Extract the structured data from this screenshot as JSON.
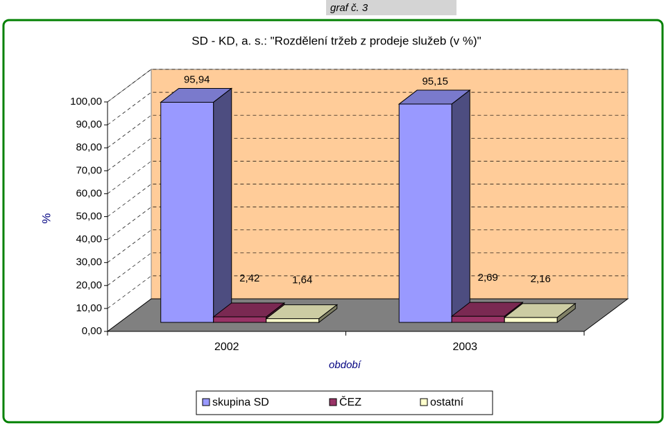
{
  "tag": "graf č. 3",
  "chart_data": {
    "type": "bar3d",
    "title": "SD - KD, a. s.: \"Rozdělení tržeb z prodeje služeb (v %)\"",
    "y_label": "%",
    "x_label": "období",
    "categories": [
      "2002",
      "2003"
    ],
    "series": [
      {
        "name": "skupina SD",
        "color": "#9999ff",
        "values": [
          95.94,
          95.15
        ],
        "value_labels": [
          "95,94",
          "95,15"
        ]
      },
      {
        "name": "ČEZ",
        "color": "#993366",
        "values": [
          2.42,
          2.69
        ],
        "value_labels": [
          "2,42",
          "2,69"
        ]
      },
      {
        "name": "ostatní",
        "color": "#ffffcc",
        "values": [
          1.64,
          2.16
        ],
        "value_labels": [
          "1,64",
          "2,16"
        ]
      }
    ],
    "ylim": [
      0,
      100
    ],
    "yticks": [
      {
        "value": 0,
        "label": "0,00"
      },
      {
        "value": 10,
        "label": "10,00"
      },
      {
        "value": 20,
        "label": "20,00"
      },
      {
        "value": 30,
        "label": "30,00"
      },
      {
        "value": 40,
        "label": "40,00"
      },
      {
        "value": 50,
        "label": "50,00"
      },
      {
        "value": 60,
        "label": "60,00"
      },
      {
        "value": 70,
        "label": "70,00"
      },
      {
        "value": 80,
        "label": "80,00"
      },
      {
        "value": 90,
        "label": "90,00"
      },
      {
        "value": 100,
        "label": "100,00"
      }
    ],
    "grid": true,
    "legend": "bottom"
  }
}
